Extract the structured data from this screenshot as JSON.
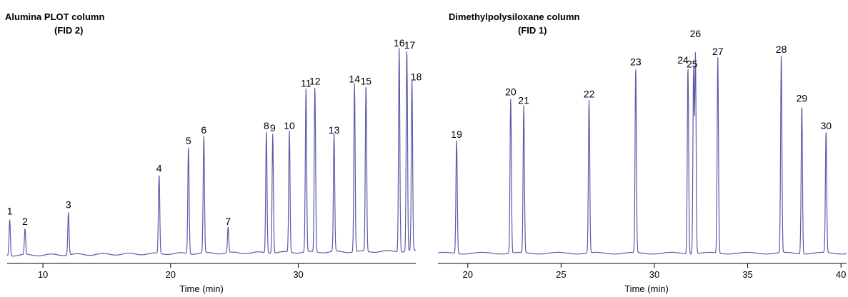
{
  "chart_data": [
    {
      "type": "line",
      "title": "Alumina PLOT column",
      "subtitle": "(FID 2)",
      "xlabel": "Time (min)",
      "ylabel": "",
      "xlim": [
        7.2,
        39.2
      ],
      "xticks": [
        10,
        20,
        30
      ],
      "xtick_labels": [
        "10",
        "20",
        "30"
      ],
      "grid": false,
      "line_color": "#5b5ba8",
      "peaks": [
        {
          "label": "1",
          "x": 7.4,
          "height": 0.17
        },
        {
          "label": "2",
          "x": 8.6,
          "height": 0.12
        },
        {
          "label": "3",
          "x": 12.0,
          "height": 0.2
        },
        {
          "label": "4",
          "x": 19.1,
          "height": 0.37
        },
        {
          "label": "5",
          "x": 21.4,
          "height": 0.5
        },
        {
          "label": "6",
          "x": 22.6,
          "height": 0.55
        },
        {
          "label": "7",
          "x": 24.5,
          "height": 0.12
        },
        {
          "label": "8",
          "x": 27.5,
          "height": 0.57
        },
        {
          "label": "9",
          "x": 28.0,
          "height": 0.56
        },
        {
          "label": "10",
          "x": 29.3,
          "height": 0.57
        },
        {
          "label": "11",
          "x": 30.6,
          "height": 0.77
        },
        {
          "label": "12",
          "x": 31.3,
          "height": 0.78
        },
        {
          "label": "13",
          "x": 32.8,
          "height": 0.55
        },
        {
          "label": "14",
          "x": 34.4,
          "height": 0.79
        },
        {
          "label": "15",
          "x": 35.3,
          "height": 0.78
        },
        {
          "label": "16",
          "x": 37.9,
          "height": 0.96
        },
        {
          "label": "17",
          "x": 38.5,
          "height": 0.95
        },
        {
          "label": "18",
          "x": 38.9,
          "height": 0.8
        }
      ]
    },
    {
      "type": "line",
      "title": "Dimethylpolysiloxane column",
      "subtitle": "(FID 1)",
      "xlabel": "Time (min)",
      "ylabel": "",
      "xlim": [
        18.4,
        40.3
      ],
      "xticks": [
        20,
        25,
        30,
        35,
        40
      ],
      "xtick_labels": [
        "20",
        "25",
        "30",
        "35",
        "40"
      ],
      "grid": false,
      "line_color": "#5b5ba8",
      "peaks": [
        {
          "label": "19",
          "x": 19.4,
          "height": 0.53
        },
        {
          "label": "20",
          "x": 22.3,
          "height": 0.73
        },
        {
          "label": "21",
          "x": 23.0,
          "height": 0.69
        },
        {
          "label": "22",
          "x": 26.5,
          "height": 0.72
        },
        {
          "label": "23",
          "x": 29.0,
          "height": 0.87
        },
        {
          "label": "24",
          "x": 31.8,
          "height": 0.88
        },
        {
          "label": "25",
          "x": 32.1,
          "height": 0.86
        },
        {
          "label": "26",
          "x": 32.2,
          "height": 0.93
        },
        {
          "label": "27",
          "x": 33.4,
          "height": 0.92
        },
        {
          "label": "28",
          "x": 36.8,
          "height": 0.93
        },
        {
          "label": "29",
          "x": 37.9,
          "height": 0.7
        },
        {
          "label": "30",
          "x": 39.2,
          "height": 0.57
        }
      ]
    }
  ]
}
